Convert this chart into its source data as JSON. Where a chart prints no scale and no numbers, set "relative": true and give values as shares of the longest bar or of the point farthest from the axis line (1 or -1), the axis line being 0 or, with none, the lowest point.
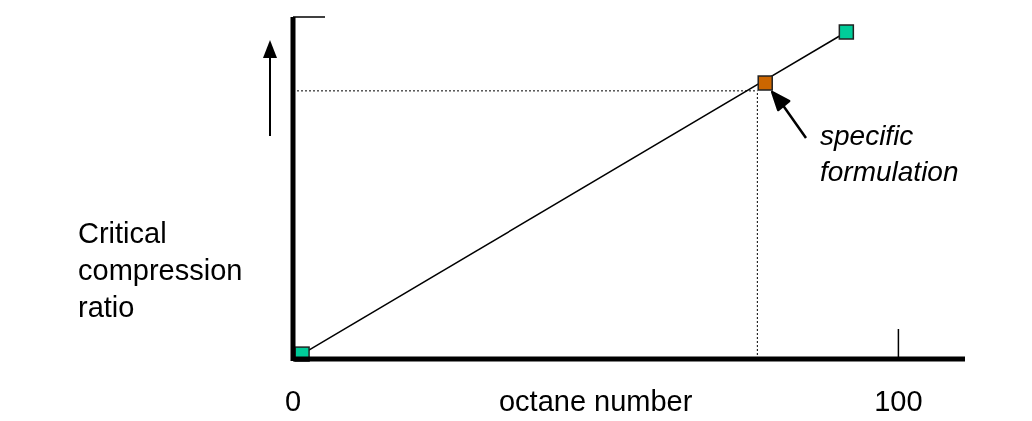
{
  "chart_data": {
    "type": "line",
    "relative": true,
    "xlabel": "octane number",
    "ylabel": "Critical compression ratio",
    "xlim": [
      0,
      111
    ],
    "xticks": [
      0,
      100
    ],
    "series": [
      {
        "type": "line",
        "color": "#000000",
        "x": [
          1.5,
          91.4
        ],
        "values": [
          0.015,
          1
        ],
        "marker": "none"
      },
      {
        "type": "scatter",
        "color": "#00cc99",
        "x": [
          1.5,
          91.4
        ],
        "values": [
          0.015,
          1
        ],
        "marker": "square"
      },
      {
        "type": "scatter",
        "color": "#cc6600",
        "x": [
          78
        ],
        "values": [
          0.844
        ],
        "marker": "square"
      }
    ],
    "ref_lines": [
      {
        "axis": "x",
        "value": 76.7,
        "line_style": "dotted"
      },
      {
        "axis": "y",
        "value": 0.82,
        "line_style": "dotted"
      }
    ],
    "annotations": [
      {
        "text": "specific formulation",
        "x": 78,
        "y": 0.844
      }
    ]
  }
}
